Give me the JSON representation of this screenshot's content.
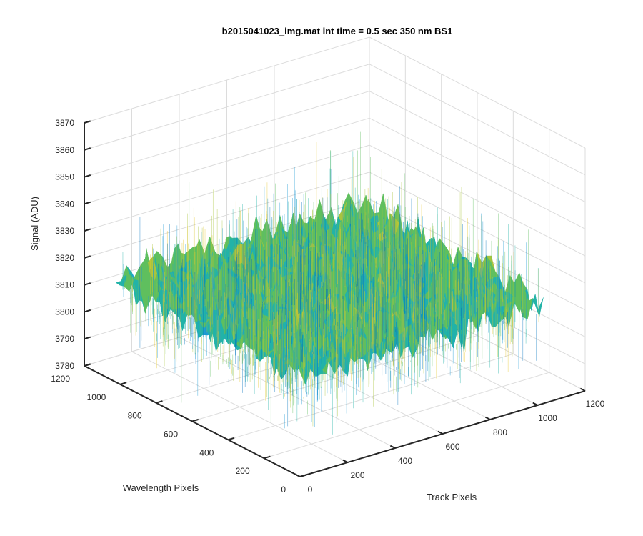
{
  "chart_data": {
    "type": "surface",
    "title": "b2015041023_img.mat int time = 0.5 sec  350 nm BS1",
    "xlabel": "Track Pixels",
    "ylabel": "Wavelength Pixels",
    "zlabel": "Signal (ADU)",
    "xlim": [
      0,
      1200
    ],
    "ylim": [
      0,
      1200
    ],
    "zlim": [
      3780,
      3870
    ],
    "xticks": [
      "0",
      "200",
      "400",
      "600",
      "800",
      "1000",
      "1200"
    ],
    "yticks": [
      "0",
      "200",
      "400",
      "600",
      "800",
      "1000",
      "1200"
    ],
    "zticks": [
      "3780",
      "3790",
      "3800",
      "3810",
      "3820",
      "3830",
      "3840",
      "3850",
      "3860",
      "3870"
    ],
    "surface": {
      "x_range": [
        0,
        1024
      ],
      "y_range": [
        0,
        1024
      ],
      "mean_signal": 3818,
      "noise_range": [
        3790,
        3860
      ],
      "colormap": "parula",
      "colors": [
        "#0072bd",
        "#1f9bd6",
        "#22b3a8",
        "#5fbf5e",
        "#a9c43d",
        "#e6c830"
      ]
    },
    "grid": true,
    "view": "3d"
  }
}
